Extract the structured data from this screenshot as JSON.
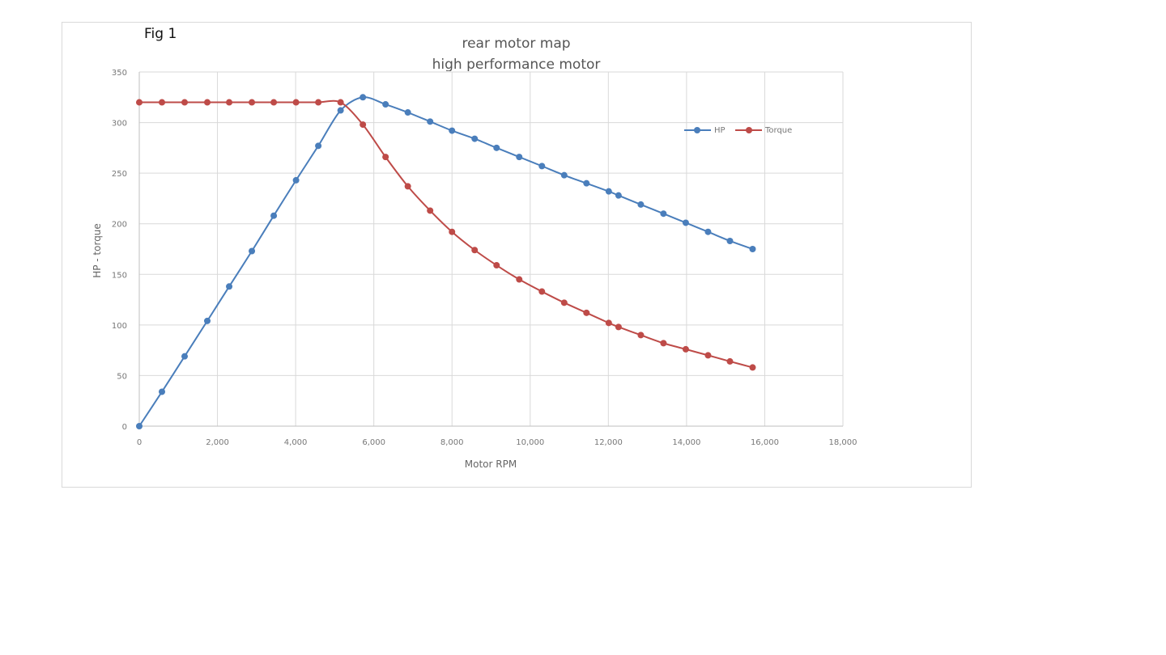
{
  "figure": {
    "label": "Fig 1",
    "title_line1": "rear motor map",
    "title_line2": "high performance motor"
  },
  "colors": {
    "hp": "#4a7ebb",
    "torque": "#be4b48",
    "grid": "#d9d9d9"
  },
  "chart_data": {
    "type": "line",
    "title": "rear motor map\nhigh performance motor",
    "xlabel": "Motor RPM",
    "ylabel": "HP - torque",
    "xlim": [
      0,
      18000
    ],
    "ylim": [
      0,
      350
    ],
    "xticks": [
      "0",
      "2,000",
      "4,000",
      "6,000",
      "8,000",
      "10,000",
      "12,000",
      "14,000",
      "16,000",
      "18,000"
    ],
    "yticks": [
      "0",
      "50",
      "100",
      "150",
      "200",
      "250",
      "300",
      "350"
    ],
    "grid": true,
    "legend_position": "upper right inside",
    "x": [
      0,
      580,
      1160,
      1740,
      2300,
      2880,
      3440,
      4010,
      4580,
      5150,
      5720,
      6300,
      6870,
      7440,
      8000,
      8580,
      9140,
      9720,
      10300,
      10870,
      11440,
      12010,
      12260,
      12830,
      13410,
      13980,
      14550,
      15110,
      15690
    ],
    "series": [
      {
        "name": "HP",
        "values": [
          0,
          34,
          69,
          104,
          138,
          173,
          208,
          243,
          277,
          312,
          325,
          318,
          310,
          301,
          292,
          284,
          275,
          266,
          257,
          248,
          240,
          232,
          228,
          219,
          210,
          201,
          192,
          183,
          175
        ]
      },
      {
        "name": "Torque",
        "values": [
          320,
          320,
          320,
          320,
          320,
          320,
          320,
          320,
          320,
          320,
          298,
          266,
          237,
          213,
          192,
          174,
          159,
          145,
          133,
          122,
          112,
          102,
          98,
          90,
          82,
          76,
          70,
          64,
          58
        ]
      }
    ]
  }
}
